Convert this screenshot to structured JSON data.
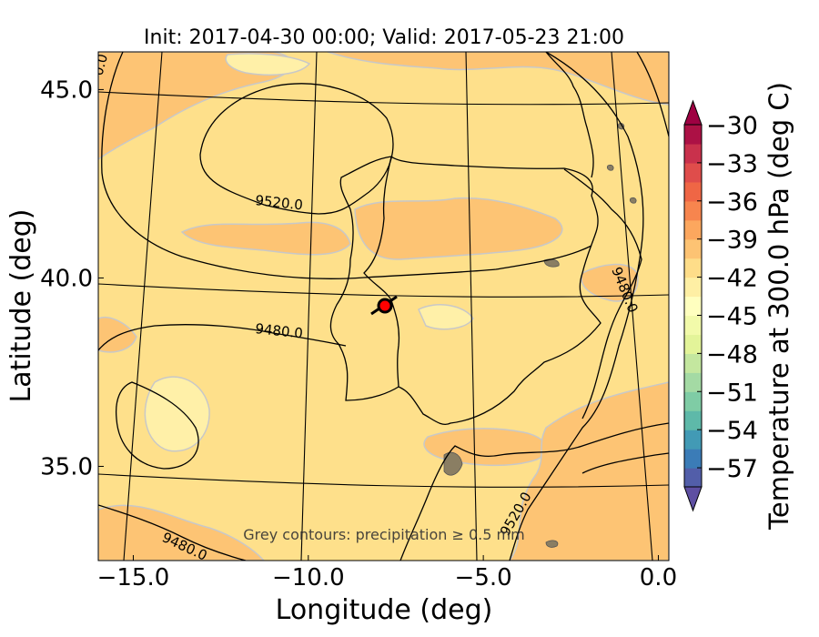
{
  "chart_data": {
    "type": "contour map",
    "title": "Init: 2017-04-30 00:00; Valid: 2017-05-23 21:00",
    "xlabel": "Longitude (deg)",
    "ylabel": "Latitude (deg)",
    "xlim": [
      -16.0,
      0.3
    ],
    "ylim": [
      32.5,
      46.0
    ],
    "x_ticks": [
      -15.0,
      -10.0,
      -5.0,
      0.0
    ],
    "x_tick_labels": [
      "−15.0",
      "−10.0",
      "−5.0",
      "0.0"
    ],
    "y_ticks": [
      35.0,
      40.0,
      45.0
    ],
    "y_tick_labels": [
      "35.0",
      "40.0",
      "45.0"
    ],
    "annotation": "Grey contours: precipitation ≥ 0.5 mm",
    "geopotential_contour_labels": [
      {
        "text": "9520.0",
        "lon": -10.0,
        "lat": 41.7
      },
      {
        "text": "9480.0",
        "lon": -10.8,
        "lat": 39.0
      },
      {
        "text": "9480.0",
        "lon": -13.3,
        "lat": 33.1
      },
      {
        "text": "9480.0",
        "lon": -0.7,
        "lat": 40.2
      },
      {
        "text": "9520.0",
        "lon": -3.7,
        "lat": 33.7
      },
      {
        "text": "0.0",
        "lon": -15.3,
        "lat": 45.8
      }
    ],
    "marker": {
      "lon": -7.6,
      "lat": 39.3,
      "color": "#ff0000"
    },
    "colorbar": {
      "label": "Temperature at 300.0 hPa (deg C)",
      "tick_values": [
        -30,
        -33,
        -36,
        -39,
        -42,
        -45,
        -48,
        -51,
        -54,
        -57
      ],
      "tick_labels": [
        "−30",
        "−33",
        "−36",
        "−39",
        "−42",
        "−45",
        "−48",
        "−51",
        "−54",
        "−57"
      ],
      "vmin": -58.5,
      "vmax": -30.0,
      "step": 1.5,
      "colormap": "Spectral_r",
      "extend": "both",
      "colors": [
        "#5e4fa2",
        "#3288bd",
        "#66c2a5",
        "#abdda4",
        "#e6f598",
        "#ffffbf",
        "#fee08b",
        "#fdae61",
        "#f46d43",
        "#d53e4f",
        "#9e0142"
      ]
    }
  }
}
